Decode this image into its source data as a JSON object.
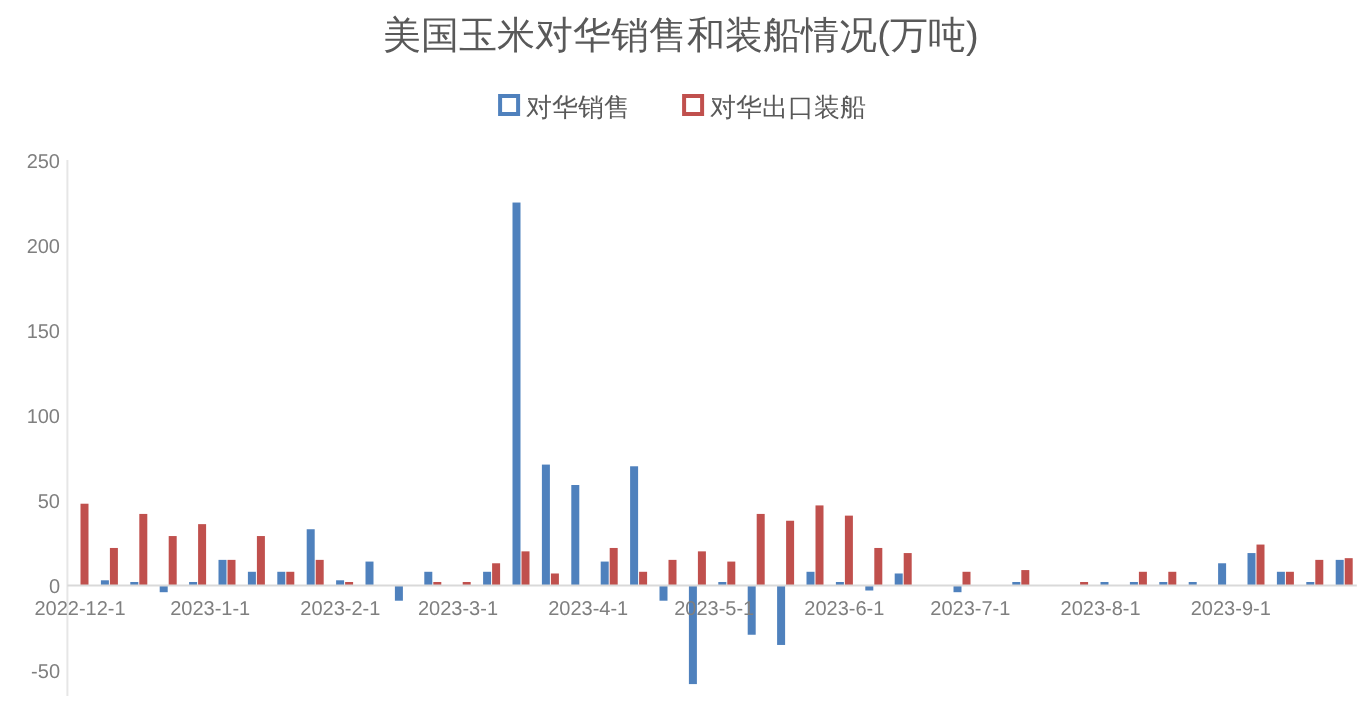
{
  "chart_data": {
    "type": "bar",
    "title": "美国玉米对华销售和装船情况(万吨)",
    "legend": "top",
    "x": [
      "2022-12-01",
      "2022-12-08",
      "2022-12-15",
      "2022-12-22",
      "2022-12-29",
      "2023-01-05",
      "2023-01-12",
      "2023-01-19",
      "2023-01-26",
      "2023-02-02",
      "2023-02-09",
      "2023-02-16",
      "2023-02-23",
      "2023-03-02",
      "2023-03-09",
      "2023-03-16",
      "2023-03-23",
      "2023-03-30",
      "2023-04-06",
      "2023-04-13",
      "2023-04-20",
      "2023-04-27",
      "2023-05-04",
      "2023-05-11",
      "2023-05-18",
      "2023-05-25",
      "2023-06-01",
      "2023-06-08",
      "2023-06-15",
      "2023-06-22",
      "2023-06-29",
      "2023-07-06",
      "2023-07-13",
      "2023-07-20",
      "2023-07-27",
      "2023-08-03",
      "2023-08-10",
      "2023-08-17",
      "2023-08-24",
      "2023-08-31",
      "2023-09-07",
      "2023-09-14",
      "2023-09-21",
      "2023-09-28"
    ],
    "series": [
      {
        "name": "对华销售",
        "color": "#4f81bd",
        "values": [
          0,
          3,
          2,
          -4,
          2,
          15,
          8,
          8,
          33,
          3,
          14,
          -9,
          8,
          0,
          8,
          225,
          71,
          59,
          14,
          70,
          -9,
          -58,
          2,
          -29,
          -35,
          8,
          2,
          -3,
          7,
          0,
          -4,
          0,
          2,
          0,
          0,
          2,
          2,
          2,
          2,
          13,
          19,
          8,
          2,
          15
        ]
      },
      {
        "name": "对华出口装船",
        "color": "#c0504d",
        "values": [
          48,
          22,
          42,
          29,
          36,
          15,
          29,
          8,
          15,
          2,
          0,
          0,
          2,
          2,
          13,
          20,
          7,
          0,
          22,
          8,
          15,
          20,
          14,
          42,
          38,
          47,
          41,
          22,
          19,
          0,
          8,
          0,
          9,
          0,
          2,
          0,
          8,
          8,
          0,
          0,
          24,
          8,
          15,
          16
        ]
      }
    ],
    "xlim": [
      "2022-11-28",
      "2023-10-01"
    ],
    "xticks": [
      {
        "value": "2022-12-01",
        "label": "2022-12-1"
      },
      {
        "value": "2023-01-01",
        "label": "2023-1-1"
      },
      {
        "value": "2023-02-01",
        "label": "2023-2-1"
      },
      {
        "value": "2023-03-01",
        "label": "2023-3-1"
      },
      {
        "value": "2023-04-01",
        "label": "2023-4-1"
      },
      {
        "value": "2023-05-01",
        "label": "2023-5-1"
      },
      {
        "value": "2023-06-01",
        "label": "2023-6-1"
      },
      {
        "value": "2023-07-01",
        "label": "2023-7-1"
      },
      {
        "value": "2023-08-01",
        "label": "2023-8-1"
      },
      {
        "value": "2023-09-01",
        "label": "2023-9-1"
      }
    ],
    "ylim": [
      -65,
      250
    ],
    "yticks": [
      -50,
      0,
      50,
      100,
      150,
      200,
      250
    ]
  }
}
